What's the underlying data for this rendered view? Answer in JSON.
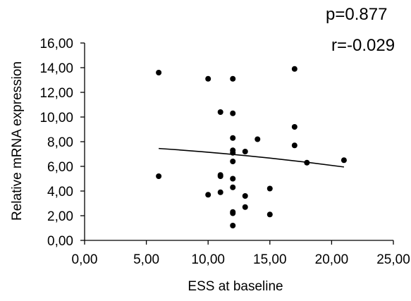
{
  "chart_data": {
    "type": "scatter",
    "title": "",
    "xlabel": "ESS at baseline",
    "ylabel": "Relative mRNA expression",
    "xlim": [
      0,
      25
    ],
    "ylim": [
      0,
      16
    ],
    "x_ticks": [
      0,
      5,
      10,
      15,
      20,
      25
    ],
    "y_ticks": [
      0,
      2,
      4,
      6,
      8,
      10,
      12,
      14,
      16
    ],
    "x_tick_labels": [
      "0,00",
      "5,00",
      "10,00",
      "15,00",
      "20,00",
      "25,00"
    ],
    "y_tick_labels": [
      "0,00",
      "2,00",
      "4,00",
      "6,00",
      "8,00",
      "10,00",
      "12,00",
      "14,00",
      "16,00"
    ],
    "grid": false,
    "legend": "none",
    "annotations": [
      "p=0.877",
      "r=-0.029"
    ],
    "point_color": "#000000",
    "series": [
      {
        "x": [
          6,
          6,
          10,
          10,
          11,
          11,
          11,
          11,
          12,
          12,
          12,
          12,
          12,
          12,
          12,
          12,
          12,
          12,
          12,
          13,
          13,
          13,
          14,
          15,
          15,
          17,
          17,
          17,
          18,
          21
        ],
        "y": [
          13.6,
          5.2,
          13.1,
          3.7,
          10.4,
          5.3,
          5.2,
          3.9,
          13.1,
          10.3,
          8.3,
          7.3,
          7.1,
          6.4,
          5.0,
          4.3,
          2.3,
          2.2,
          1.2,
          7.2,
          3.6,
          2.7,
          8.2,
          4.2,
          2.1,
          13.9,
          9.2,
          7.7,
          6.3,
          6.5
        ]
      }
    ],
    "trendline": {
      "x": [
        6,
        21
      ],
      "y": [
        7.45,
        5.95
      ]
    }
  }
}
